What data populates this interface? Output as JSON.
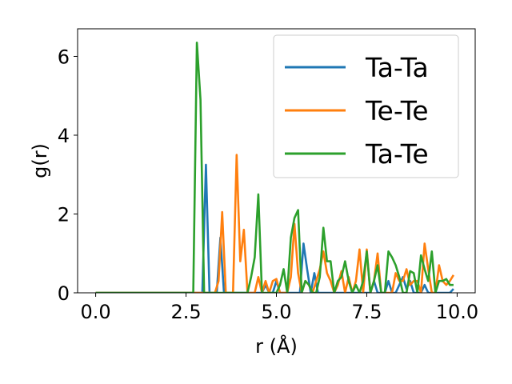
{
  "chart_data": {
    "type": "line",
    "xlabel": "r (Å)",
    "ylabel": "g(r)",
    "xlim": [
      -0.5,
      10.5
    ],
    "ylim": [
      0,
      6.7
    ],
    "x_ticks": [
      0.0,
      2.5,
      5.0,
      7.5,
      10.0
    ],
    "x_tick_labels": [
      "0.0",
      "2.5",
      "5.0",
      "7.5",
      "10.0"
    ],
    "y_ticks": [
      0,
      2,
      4,
      6
    ],
    "y_tick_labels": [
      "0",
      "2",
      "4",
      "6"
    ],
    "grid": false,
    "legend_position": "top-right",
    "series": [
      {
        "name": "Ta-Ta",
        "color": "#1f77b4",
        "x": [
          0.0,
          2.9,
          2.95,
          3.05,
          3.15,
          3.25,
          3.35,
          3.45,
          3.55,
          4.5,
          4.6,
          4.7,
          4.8,
          4.9,
          5.0,
          5.1,
          5.65,
          5.75,
          5.85,
          5.95,
          6.05,
          6.15,
          7.6,
          7.7,
          7.8,
          7.9,
          8.0,
          8.1,
          8.2,
          8.3,
          8.4,
          8.5,
          8.6,
          8.7,
          8.8,
          8.9,
          9.0,
          9.1,
          9.2,
          9.3,
          9.4,
          9.5,
          9.6,
          9.7,
          9.8,
          9.9
        ],
        "y": [
          0.0,
          0.0,
          0.0,
          3.25,
          0.0,
          0.0,
          0.0,
          1.4,
          0.0,
          0.0,
          0.0,
          0.2,
          0.0,
          0.0,
          0.3,
          0.0,
          0.0,
          1.25,
          0.6,
          0.0,
          0.5,
          0.0,
          0.0,
          0.3,
          0.0,
          0.0,
          0.0,
          0.3,
          0.0,
          0.0,
          0.2,
          0.4,
          0.1,
          0.3,
          0.0,
          0.0,
          0.0,
          0.2,
          0.0,
          0.0,
          0.0,
          0.0,
          0.0,
          0.0,
          0.0,
          0.1
        ]
      },
      {
        "name": "Te-Te",
        "color": "#ff7f0e",
        "x": [
          0.0,
          3.3,
          3.4,
          3.5,
          3.6,
          3.7,
          3.8,
          3.9,
          4.0,
          4.1,
          4.2,
          4.3,
          4.4,
          4.5,
          4.6,
          4.7,
          4.8,
          4.9,
          5.0,
          5.1,
          5.2,
          5.3,
          5.4,
          5.5,
          5.6,
          5.7,
          5.8,
          5.9,
          6.0,
          6.1,
          6.2,
          6.3,
          6.4,
          6.5,
          6.6,
          6.7,
          6.8,
          6.9,
          7.0,
          7.1,
          7.2,
          7.3,
          7.4,
          7.5,
          7.6,
          7.7,
          7.8,
          7.9,
          8.0,
          8.1,
          8.2,
          8.3,
          8.4,
          8.5,
          8.6,
          8.7,
          8.8,
          8.9,
          9.0,
          9.1,
          9.2,
          9.3,
          9.4,
          9.5,
          9.6,
          9.7,
          9.8,
          9.9
        ],
        "y": [
          0.0,
          0.0,
          0.3,
          2.05,
          0.0,
          0.0,
          0.0,
          3.5,
          0.8,
          1.6,
          0.0,
          0.0,
          0.0,
          0.4,
          0.0,
          0.3,
          0.0,
          0.3,
          0.35,
          0.0,
          0.0,
          0.0,
          0.4,
          1.75,
          0.5,
          0.0,
          0.3,
          0.2,
          0.0,
          0.3,
          0.6,
          1.05,
          0.5,
          0.3,
          0.0,
          0.2,
          0.55,
          0.0,
          0.4,
          0.0,
          0.3,
          1.1,
          0.0,
          1.1,
          0.0,
          0.3,
          1.0,
          0.0,
          0.0,
          0.0,
          0.0,
          0.5,
          0.3,
          0.3,
          0.6,
          0.2,
          0.3,
          0.3,
          0.0,
          1.25,
          0.6,
          0.0,
          0.0,
          0.7,
          0.3,
          0.2,
          0.3,
          0.45
        ]
      },
      {
        "name": "Ta-Te",
        "color": "#2ca02c",
        "x": [
          0.0,
          2.7,
          2.8,
          2.9,
          3.0,
          3.1,
          3.2,
          4.0,
          4.1,
          4.2,
          4.3,
          4.4,
          4.5,
          4.6,
          4.7,
          4.8,
          4.9,
          5.0,
          5.1,
          5.2,
          5.3,
          5.4,
          5.5,
          5.6,
          5.7,
          5.8,
          5.9,
          6.0,
          6.1,
          6.2,
          6.3,
          6.4,
          6.5,
          6.6,
          6.7,
          6.8,
          6.9,
          7.0,
          7.1,
          7.2,
          7.3,
          7.4,
          7.5,
          7.6,
          7.7,
          7.8,
          7.9,
          8.0,
          8.1,
          8.2,
          8.3,
          8.4,
          8.5,
          8.6,
          8.7,
          8.8,
          8.9,
          9.0,
          9.1,
          9.2,
          9.3,
          9.4,
          9.5,
          9.6,
          9.7,
          9.8,
          9.9
        ],
        "y": [
          0.0,
          0.0,
          6.35,
          4.9,
          0.0,
          0.0,
          0.0,
          0.0,
          0.0,
          0.0,
          0.4,
          0.9,
          2.5,
          0.0,
          0.0,
          0.0,
          0.0,
          0.0,
          0.2,
          0.6,
          0.0,
          1.4,
          1.9,
          2.1,
          0.0,
          0.3,
          0.2,
          0.0,
          0.0,
          0.4,
          1.65,
          0.8,
          0.8,
          0.0,
          0.3,
          0.4,
          0.8,
          0.3,
          0.0,
          0.2,
          0.0,
          0.3,
          1.05,
          0.0,
          0.3,
          0.7,
          0.0,
          0.0,
          1.05,
          0.9,
          0.7,
          0.4,
          0.0,
          0.0,
          0.55,
          0.5,
          0.0,
          0.95,
          0.6,
          0.3,
          1.05,
          0.0,
          0.3,
          0.3,
          0.35,
          0.2,
          0.2
        ]
      }
    ]
  }
}
